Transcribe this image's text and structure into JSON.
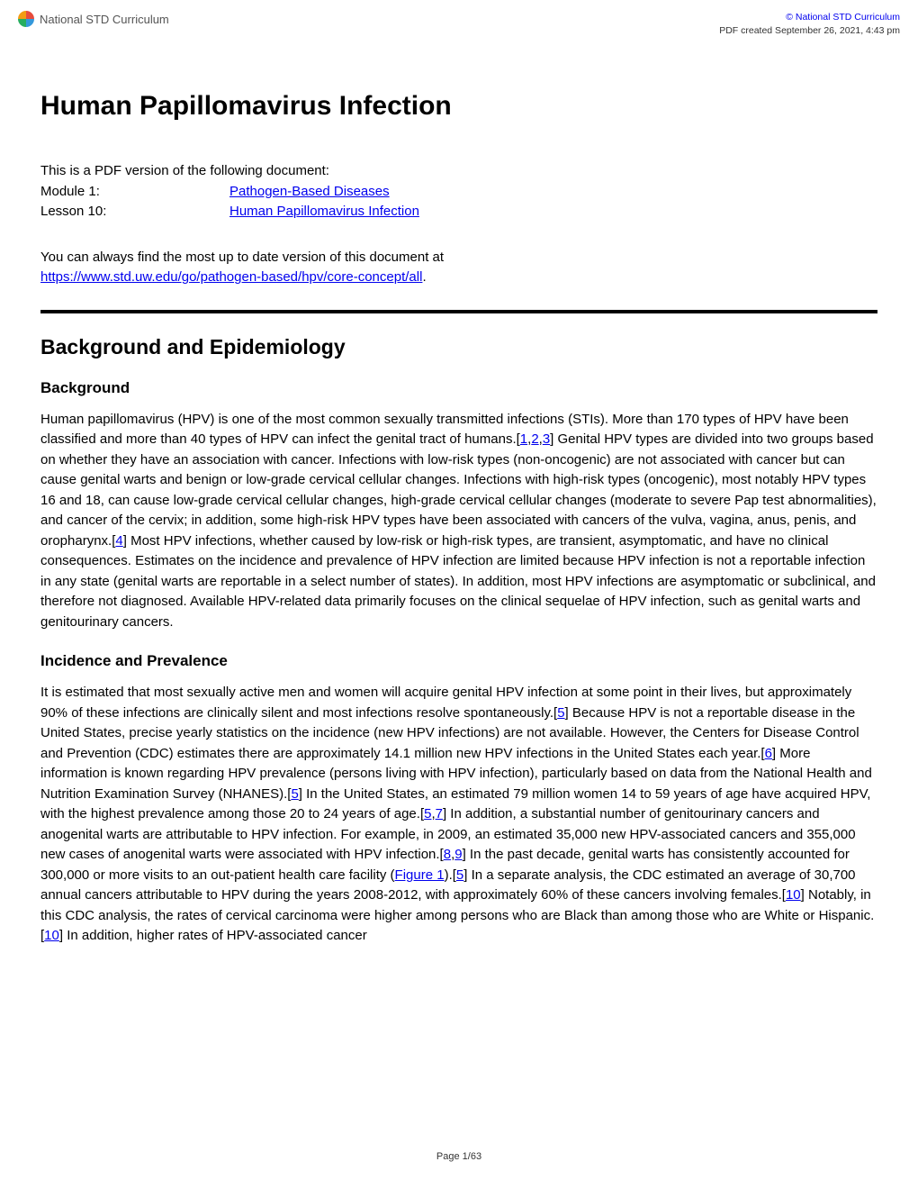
{
  "header": {
    "logo_text": "National STD Curriculum",
    "copyright": "© National STD Curriculum",
    "pdf_created": "PDF created September 26, 2021, 4:43 pm"
  },
  "title": "Human Papillomavirus Infection",
  "doc_info": {
    "intro": "This is a PDF version of the following document:",
    "module_label": "Module 1:",
    "module_link": "Pathogen-Based Diseases",
    "lesson_label": "Lesson 10:",
    "lesson_link": "Human Papillomavirus Infection"
  },
  "update": {
    "text": "You can always find the most up to date version of this document at ",
    "url": "https://www.std.uw.edu/go/pathogen-based/hpv/core-concept/all",
    "period": "."
  },
  "section_title": "Background and Epidemiology",
  "background": {
    "heading": "Background",
    "p1a": "Human papillomavirus (HPV) is one of the most common sexually transmitted infections (STIs). More than 170 types of HPV have been classified and more than 40 types of HPV can infect the genital tract of humans.[",
    "r1": "1",
    "c1": ",",
    "r2": "2",
    "c2": ",",
    "r3": "3",
    "p1b": "] Genital HPV types are divided into two groups based on whether they have an association with cancer. Infections with low-risk types (non-oncogenic) are not associated with cancer but can cause genital warts and benign or low-grade cervical cellular changes. Infections with high-risk types (oncogenic), most notably HPV types 16 and 18, can cause low-grade cervical cellular changes, high-grade cervical cellular changes (moderate to severe Pap test abnormalities), and cancer of the cervix; in addition, some high-risk HPV types have been associated with cancers of the vulva, vagina, anus, penis, and oropharynx.[",
    "r4": "4",
    "p1c": "] Most HPV infections, whether caused by low-risk or high-risk types, are transient, asymptomatic, and have no clinical consequences. Estimates on the incidence and prevalence of HPV infection are limited because HPV infection is not a reportable infection in any state (genital warts are reportable in a select number of states). In addition, most HPV infections are asymptomatic or subclinical, and therefore not diagnosed. Available HPV-related data primarily focuses on the clinical sequelae of HPV infection, such as genital warts and genitourinary cancers."
  },
  "incidence": {
    "heading": "Incidence and Prevalence",
    "p1a": "It is estimated that most sexually active men and women will acquire genital HPV infection at some point in their lives, but approximately 90% of these infections are clinically silent and most infections resolve spontaneously.[",
    "r5a": "5",
    "p1b": "] Because HPV is not a reportable disease in the United States, precise yearly statistics on the incidence (new HPV infections) are not available. However, the Centers for Disease Control and Prevention (CDC) estimates there are approximately 14.1 million new HPV infections in the United States each year.[",
    "r6": "6",
    "p1c": "] More information is known regarding HPV prevalence (persons living with HPV infection), particularly based on data from the National Health and Nutrition Examination Survey (NHANES).[",
    "r5b": "5",
    "p1d": "] In the United States, an estimated 79 million women 14 to 59 years of age have acquired HPV, with the highest prevalence among those 20 to 24 years of age.[",
    "r5c": "5",
    "c3": ",",
    "r7": "7",
    "p1e": "] In addition, a substantial number of genitourinary cancers and anogenital warts are attributable to HPV infection. For example, in 2009, an estimated 35,000 new HPV-associated cancers and 355,000 new cases of anogenital warts were associated with HPV infection.[",
    "r8": "8",
    "c4": ",",
    "r9": "9",
    "p1f": "] In the past decade, genital warts has consistently accounted for 300,000 or more visits to an out-patient health care facility (",
    "fig1": "Figure 1",
    "p1g": ").[",
    "r5d": "5",
    "p1h": "] In a separate analysis, the CDC estimated an average of 30,700 annual cancers attributable to HPV during the years 2008-2012, with approximately 60% of these cancers involving females.[",
    "r10a": "10",
    "p1i": "] Notably, in this CDC analysis, the rates of cervical carcinoma were higher among persons who are Black than among those who are White or Hispanic.[",
    "r10b": "10",
    "p1j": "] In addition, higher rates of HPV-associated cancer"
  },
  "footer": "Page 1/63",
  "colors": {
    "link": "#0000ee",
    "text": "#000000",
    "bg": "#ffffff"
  }
}
